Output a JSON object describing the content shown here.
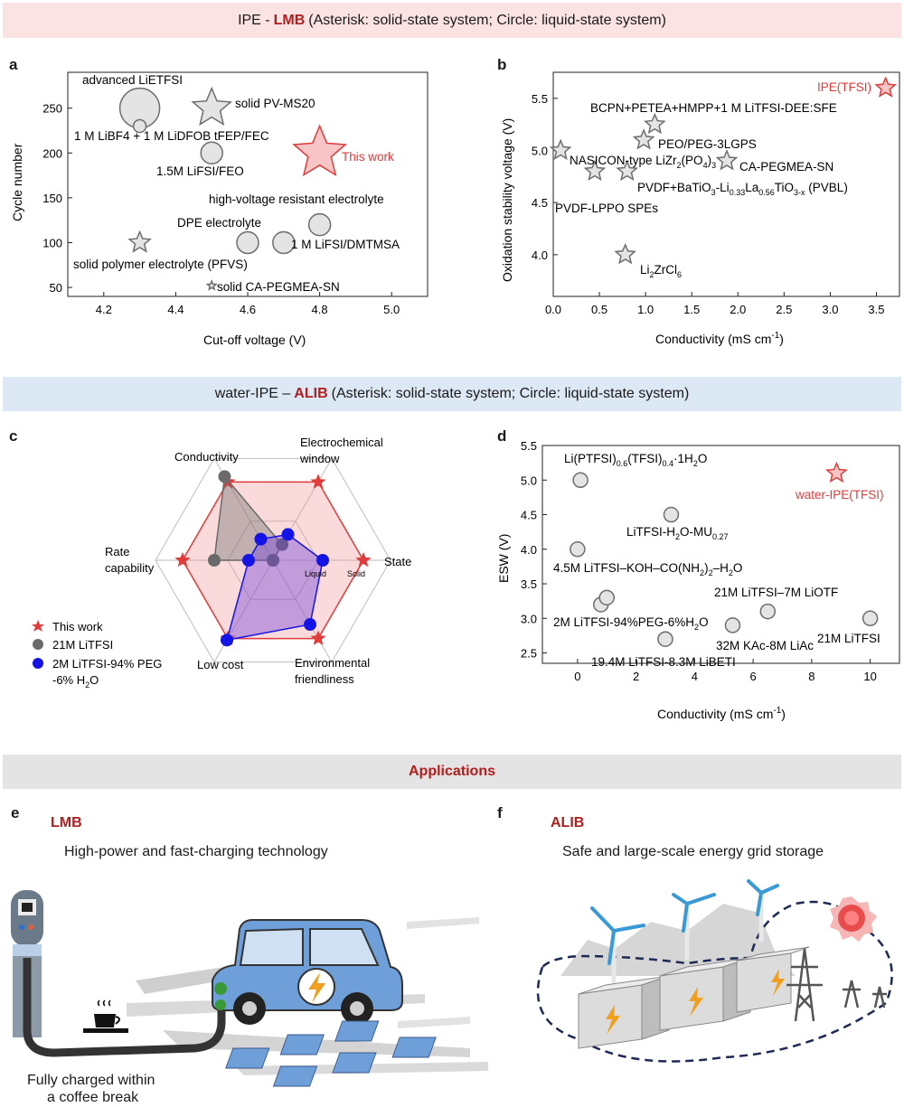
{
  "banner_top": {
    "prefix": "IPE -",
    "highlight": "LMB",
    "rest": "(Asterisk: solid-state system; Circle: liquid-state system)"
  },
  "banner_mid": {
    "prefix": "water-IPE –",
    "highlight": "ALIB",
    "rest": "(Asterisk: solid-state system; Circle: liquid-state system)"
  },
  "banner_bottom": "Applications",
  "panel_labels": {
    "a": "a",
    "b": "b",
    "c": "c",
    "d": "d",
    "e": "e",
    "f": "f"
  },
  "chart_data": [
    {
      "id": "a",
      "type": "scatter",
      "xlabel": "Cut-off voltage (V)",
      "ylabel": "Cycle number",
      "xlim": [
        4.1,
        5.1
      ],
      "ylim": [
        40,
        290
      ],
      "xticks": [
        "4.2",
        "4.4",
        "4.6",
        "4.8",
        "5.0"
      ],
      "yticks": [
        "50",
        "100",
        "150",
        "200",
        "250"
      ],
      "points": [
        {
          "label": "advanced LiETFSI",
          "x": 4.3,
          "y": 250,
          "shape": "circle",
          "size": "large"
        },
        {
          "label": "solid PV-MS20",
          "x": 4.5,
          "y": 250,
          "shape": "star",
          "size": "large"
        },
        {
          "label": "1 M LiBF4 + 1 M LiDFOB tFEP/FEC",
          "x": 4.3,
          "y": 230,
          "shape": "circle",
          "size": "small"
        },
        {
          "label": "This work",
          "x": 4.8,
          "y": 200,
          "shape": "star",
          "size": "xlarge",
          "highlight": true
        },
        {
          "label": "1.5M LiFSI/FEO",
          "x": 4.5,
          "y": 200,
          "shape": "circle",
          "size": "medium"
        },
        {
          "label": "high-voltage resistant electrolyte",
          "x": 4.8,
          "y": 120,
          "shape": "circle",
          "size": "medium"
        },
        {
          "label": "DPE electrolyte",
          "x": 4.6,
          "y": 100,
          "shape": "circle",
          "size": "medium"
        },
        {
          "label": "1 M LiFSI/DMTMSA",
          "x": 4.7,
          "y": 100,
          "shape": "circle",
          "size": "medium"
        },
        {
          "label": "solid polymer electrolyte (PFVS)",
          "x": 4.3,
          "y": 100,
          "shape": "star",
          "size": "medium"
        },
        {
          "label": "solid CA-PEGMEA-SN",
          "x": 4.5,
          "y": 52,
          "shape": "star",
          "size": "tiny"
        }
      ]
    },
    {
      "id": "b",
      "type": "scatter",
      "xlabel": "Conductivity (mS cm",
      "xlabel_sup": "-1",
      "xlabel_end": ")",
      "ylabel": "Oxidation stability voltage (V)",
      "xlim": [
        0,
        3.75
      ],
      "ylim": [
        3.6,
        5.75
      ],
      "xticks": [
        "0.0",
        "0.5",
        "1.0",
        "1.5",
        "2.0",
        "2.5",
        "3.0",
        "3.5"
      ],
      "yticks": [
        "4.0",
        "4.5",
        "5.0",
        "5.5"
      ],
      "points": [
        {
          "label": "IPE(TFSI)",
          "x": 3.6,
          "y": 5.6,
          "highlight": true
        },
        {
          "label": "BCPN+PETEA+HMPP+1 M LiTFSI-DEE:SFE",
          "x": 1.1,
          "y": 5.25
        },
        {
          "label": "PEO/PEG-3LGPS",
          "x": 0.98,
          "y": 5.1
        },
        {
          "label": "NASICON-type LiZr2(PO4)3",
          "x": 0.08,
          "y": 5.0
        },
        {
          "label": "CA-PEGMEA-SN",
          "x": 1.88,
          "y": 4.9
        },
        {
          "label": "PVDF+BaTiO3-Li0.33La0.56TiO3-x (PVBL)",
          "x": 0.8,
          "y": 4.8
        },
        {
          "label": "PVDF-LPPO SPEs",
          "x": 0.45,
          "y": 4.8
        },
        {
          "label": "Li2ZrCl6",
          "x": 0.78,
          "y": 4.0
        }
      ],
      "label_parts": {
        "nasicon": {
          "a": "NASICON-type LiZr",
          "s1": "2",
          "b": "(PO",
          "s2": "4",
          "c": ")",
          "s3": "3"
        },
        "pvbl": {
          "a": "PVDF+BaTiO",
          "s1": "3",
          "b": "-Li",
          "s2": "0.33",
          "c": "La",
          "s3": "0.56",
          "d": "TiO",
          "s4": "3-x",
          "e": " (PVBL)"
        },
        "lzc": {
          "a": "Li",
          "s1": "2",
          "b": "ZrCl",
          "s2": "6"
        }
      }
    },
    {
      "id": "c",
      "type": "radar",
      "axes": [
        "Conductivity",
        "Electrochemical window",
        "State",
        "Environmental friendliness",
        "Low cost",
        "Rate capability"
      ],
      "axis_label_lines": {
        "conductivity": "Conductivity",
        "echem_1": "Electrochemical",
        "echem_2": "window",
        "state": "State",
        "env_1": "Environmental",
        "env_2": "friendliness",
        "cost": "Low cost",
        "rate_1": "Rate",
        "rate_2": "capability"
      },
      "state_ticks": {
        "liquid": "Liquid",
        "solid": "Solid"
      },
      "scale_max": 1.0,
      "series": [
        {
          "name": "This work",
          "marker": "star",
          "color": "#e03c3c",
          "values": [
            1.0,
            1.0,
            1.0,
            1.0,
            1.0,
            1.0
          ]
        },
        {
          "name": "21M LiTFSI",
          "marker": "circle",
          "color": "#6a6a6a",
          "values": [
            1.07,
            0.2,
            0.0,
            0.0,
            0.0,
            0.65
          ]
        },
        {
          "name": "2M LiTFSI-94% PEG -6% H2O",
          "marker": "circle",
          "color": "#1414e6",
          "values": [
            0.27,
            0.33,
            0.55,
            0.82,
            1.02,
            0.27
          ]
        }
      ],
      "legend": {
        "l1": "This work",
        "l2": "21M LiTFSI",
        "l3a": "2M LiTFSI-94% PEG",
        "l3b": "-6% H",
        "l3s": "2",
        "l3c": "O"
      }
    },
    {
      "id": "d",
      "type": "scatter",
      "xlabel": "Conductivity (mS cm",
      "xlabel_sup": "-1",
      "xlabel_end": ")",
      "ylabel": "ESW (V)",
      "xlim": [
        -1.2,
        11
      ],
      "ylim": [
        2.35,
        5.5
      ],
      "xticks": [
        "0",
        "2",
        "4",
        "6",
        "8",
        "10"
      ],
      "yticks": [
        "2.5",
        "3.0",
        "3.5",
        "4.0",
        "4.5",
        "5.0",
        "5.5"
      ],
      "points": [
        {
          "label": "Li(PTFSI)0.6(TFSI)0.4·1H2O",
          "x": 0.1,
          "y": 5.0
        },
        {
          "label": "water-IPE(TFSI)",
          "x": 8.85,
          "y": 5.1,
          "highlight": true,
          "shape": "star"
        },
        {
          "label": "LiTFSI-H2O-MU0.27",
          "x": 3.2,
          "y": 4.5
        },
        {
          "label": "4.5M LiTFSI–KOH–CO(NH2)2–H2O",
          "x": 0.0,
          "y": 4.0
        },
        {
          "label": "21M LiTFSI–7M LiOTF",
          "x": 6.5,
          "y": 3.1
        },
        {
          "label": "2M LiTFSI-94%PEG-6%H2O",
          "x": 0.8,
          "y": 3.2
        },
        {
          "label": "2M LiTFSI-94%PEG-6%H2O (b)",
          "x": 1.0,
          "y": 3.3
        },
        {
          "label": "32M KAc-8M LiAc",
          "x": 5.3,
          "y": 2.9
        },
        {
          "label": "19.4M LiTFSI-8.3M LiBETI",
          "x": 3.0,
          "y": 2.7
        },
        {
          "label": "21M LiTFSI",
          "x": 10.0,
          "y": 3.0
        }
      ],
      "label_parts": {
        "lip": {
          "a": "Li(PTFSI)",
          "s1": "0.6",
          "b": "(TFSI)",
          "s2": "0.4",
          "c": "·1H",
          "s3": "2",
          "d": "O"
        },
        "mu": {
          "a": "LiTFSI-H",
          "s1": "2",
          "b": "O-MU",
          "s2": "0.27"
        },
        "koh": {
          "a": "4.5M LiTFSI–KOH–CO(NH",
          "s1": "2",
          "b": ")",
          "s2": "2",
          "c": "–H",
          "s3": "2",
          "d": "O"
        },
        "otf": "21M LiTFSI–7M LiOTF",
        "peg": {
          "a": "2M LiTFSI-94%PEG-6%H",
          "s1": "2",
          "b": "O"
        },
        "kac": "32M KAc-8M LiAc",
        "beti": "19.4M LiTFSI-8.3M LiBETI",
        "l21": "21M LiTFSI",
        "wipe": "water-IPE(TFSI)"
      }
    }
  ],
  "panel_e": {
    "tag": "LMB",
    "subtitle": "High-power and fast-charging technology",
    "caption_1": "Fully charged within",
    "caption_2": "a coffee break"
  },
  "panel_f": {
    "tag": "ALIB",
    "subtitle": "Safe and large-scale energy grid storage"
  },
  "colors": {
    "red": "#e03c3c",
    "red_fill": "#f7c5c5",
    "grey_fill": "#e4e4e4",
    "grey_stroke": "#6d6d6d",
    "blue": "#1414e6",
    "car": "#6e9fd8",
    "bolt": "#f0a020"
  }
}
